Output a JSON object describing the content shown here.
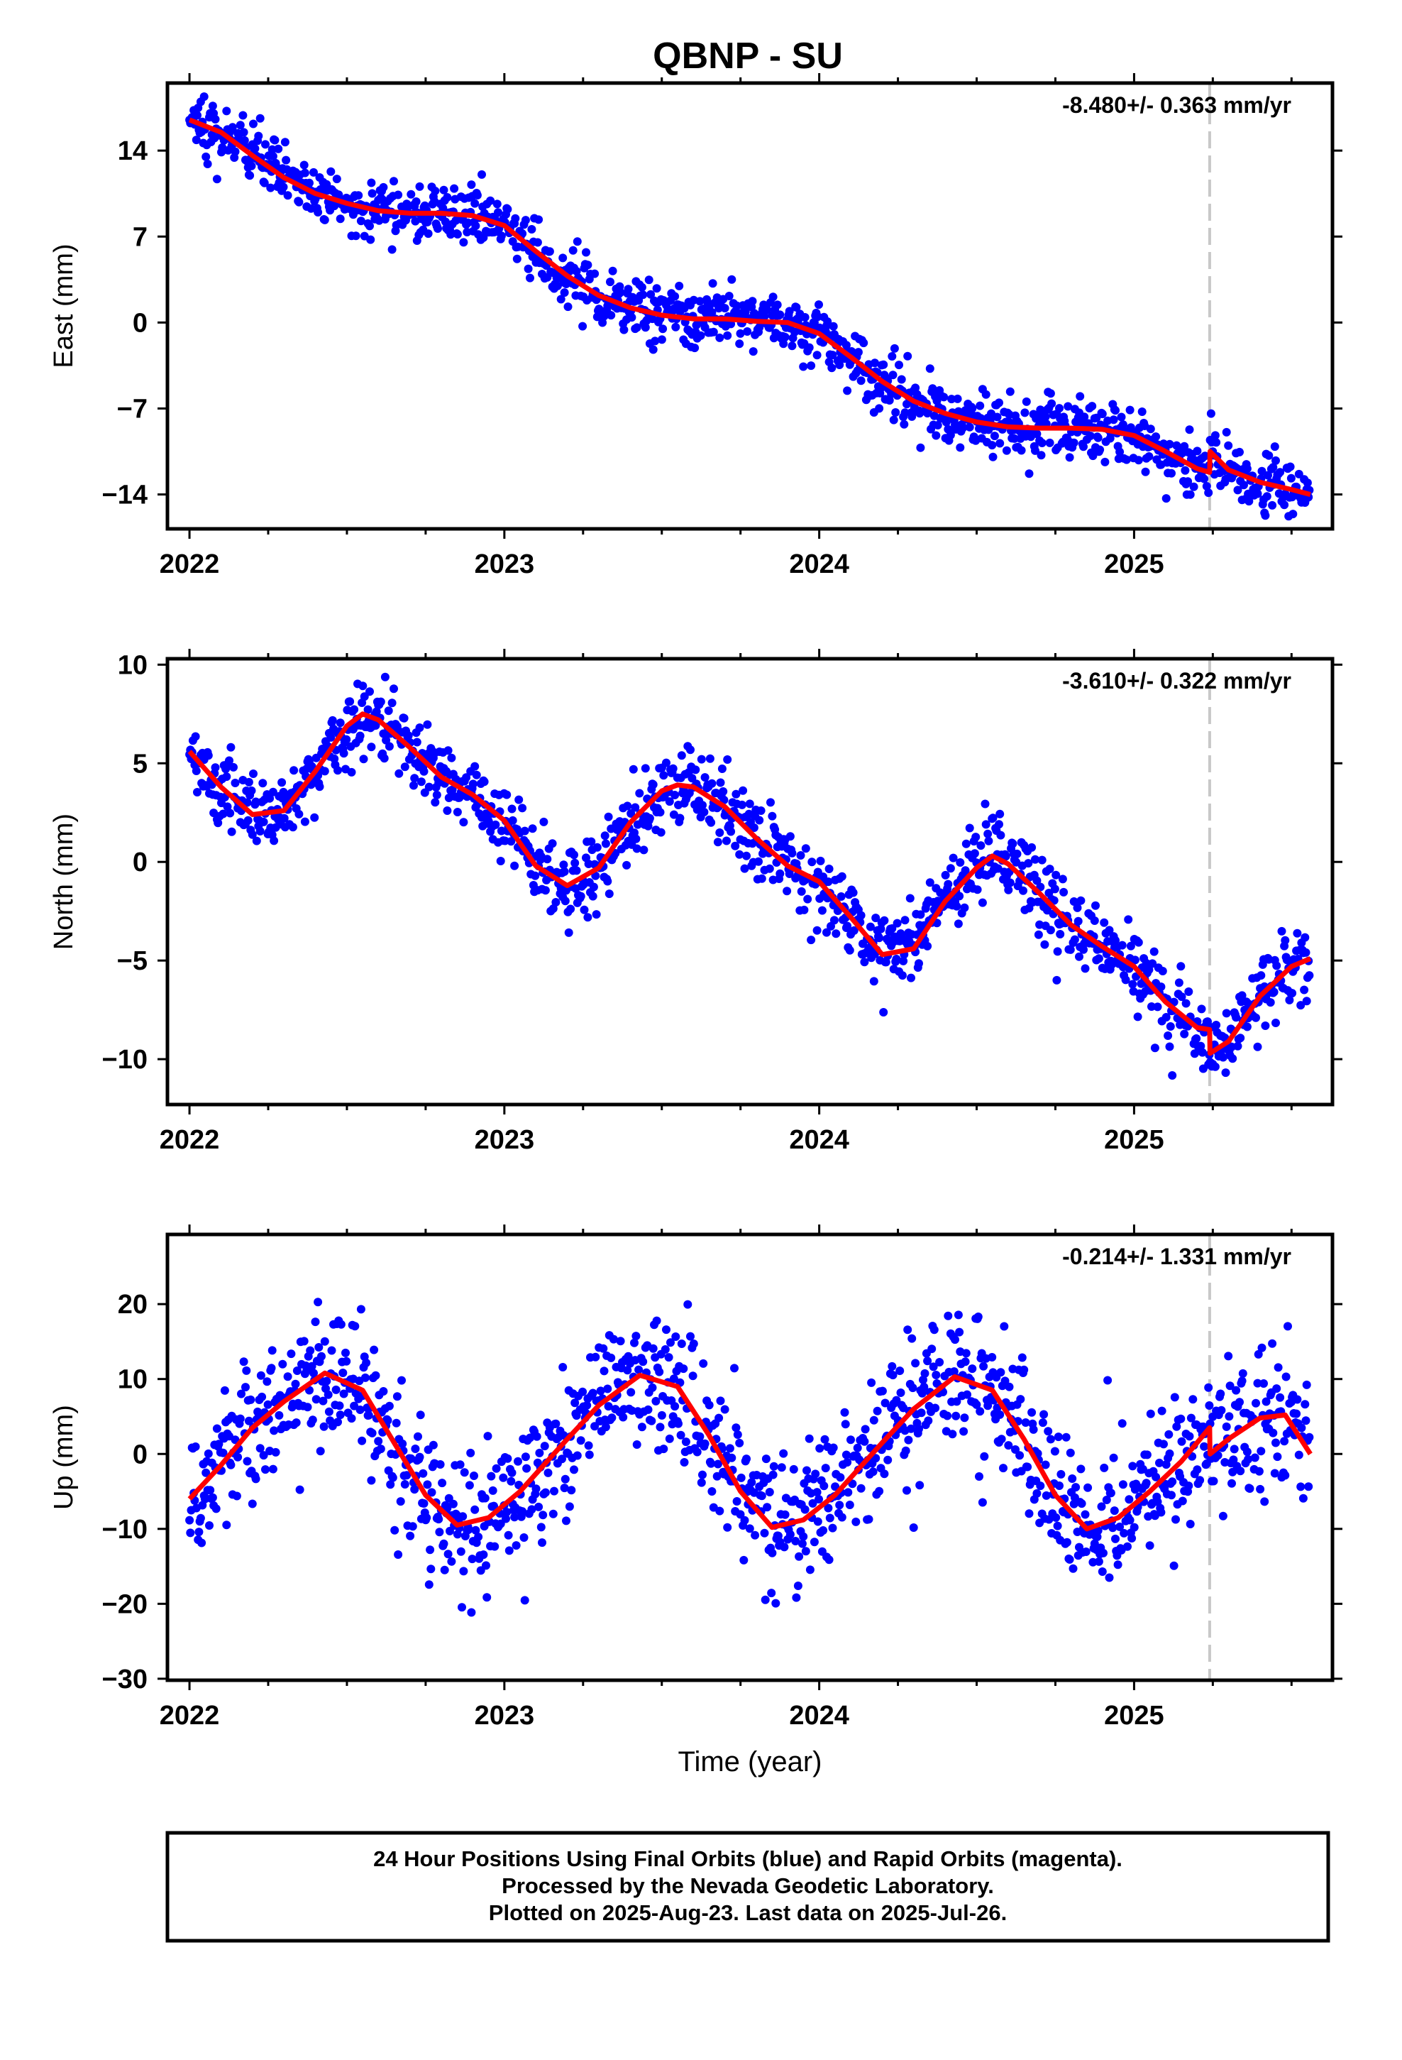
{
  "title": "QBNP - SU",
  "footer": {
    "lines": [
      "24 Hour Positions Using Final Orbits (blue) and Rapid Orbits (magenta).",
      "Processed by the Nevada Geodetic Laboratory.",
      "Plotted on 2025-Aug-23. Last data on 2025-Jul-26."
    ]
  },
  "colors": {
    "data_points": "#0000ff",
    "model_fit": "#ff0000",
    "event_line": "#c8c8c8",
    "frame": "#000000"
  },
  "chart_data": [
    {
      "type": "scatter",
      "component": "east",
      "ylabel": "East (mm)",
      "xlabel": "",
      "rate_label": "-8.480+/- 0.363 mm/yr",
      "xlim": [
        2021.93,
        2025.63
      ],
      "ylim": [
        -16.8,
        19.5
      ],
      "yticks": [
        14,
        7,
        0,
        -7,
        -14
      ],
      "xticks": [
        2022,
        2023,
        2024,
        2025
      ],
      "event_x": 2025.24,
      "model": {
        "x": [
          2022.0,
          2022.1,
          2022.2,
          2022.3,
          2022.4,
          2022.5,
          2022.6,
          2022.7,
          2022.8,
          2022.9,
          2023.0,
          2023.1,
          2023.2,
          2023.3,
          2023.4,
          2023.5,
          2023.6,
          2023.7,
          2023.8,
          2023.9,
          2024.0,
          2024.1,
          2024.2,
          2024.3,
          2024.4,
          2024.5,
          2024.6,
          2024.7,
          2024.8,
          2024.9,
          2025.0,
          2025.1,
          2025.2,
          2025.24,
          2025.241,
          2025.3,
          2025.4,
          2025.5,
          2025.56
        ],
        "y": [
          16.5,
          15.5,
          13.6,
          11.8,
          10.5,
          9.7,
          9.1,
          8.9,
          8.9,
          8.7,
          7.9,
          5.8,
          3.8,
          2.2,
          1.2,
          0.6,
          0.3,
          0.3,
          0.1,
          0.0,
          -0.9,
          -2.8,
          -4.8,
          -6.4,
          -7.4,
          -8.1,
          -8.5,
          -8.6,
          -8.6,
          -8.7,
          -9.2,
          -10.5,
          -11.9,
          -12.2,
          -10.5,
          -12.0,
          -13.0,
          -13.6,
          -14.0
        ]
      },
      "trend": {
        "start_y": 16.8,
        "end_y": -14.8,
        "amp": 1.2,
        "amp2": 0.5,
        "noise": 1.2
      },
      "observations": "~1200 daily positions, 2022.0–2025.56"
    },
    {
      "type": "scatter",
      "component": "north",
      "ylabel": "North (mm)",
      "xlabel": "",
      "rate_label": "-3.610+/- 0.322 mm/yr",
      "xlim": [
        2021.93,
        2025.63
      ],
      "ylim": [
        -12.3,
        10.3
      ],
      "yticks": [
        10,
        5,
        0,
        -5,
        -10
      ],
      "xticks": [
        2022,
        2023,
        2024,
        2025
      ],
      "event_x": 2025.24,
      "model": {
        "x": [
          2022.0,
          2022.1,
          2022.2,
          2022.3,
          2022.4,
          2022.5,
          2022.55,
          2022.6,
          2022.7,
          2022.8,
          2022.9,
          2023.0,
          2023.1,
          2023.2,
          2023.3,
          2023.4,
          2023.5,
          2023.55,
          2023.6,
          2023.7,
          2023.8,
          2023.9,
          2024.0,
          2024.1,
          2024.2,
          2024.3,
          2024.4,
          2024.5,
          2024.55,
          2024.6,
          2024.7,
          2024.8,
          2024.9,
          2025.0,
          2025.1,
          2025.2,
          2025.24,
          2025.241,
          2025.3,
          2025.4,
          2025.5,
          2025.56
        ],
        "y": [
          5.6,
          3.8,
          2.4,
          2.6,
          4.6,
          6.9,
          7.5,
          7.2,
          5.8,
          4.3,
          3.4,
          2.1,
          -0.2,
          -1.2,
          -0.3,
          2.0,
          3.6,
          3.9,
          3.8,
          2.8,
          1.2,
          -0.2,
          -1.0,
          -2.8,
          -4.7,
          -4.4,
          -2.0,
          -0.3,
          0.3,
          -0.1,
          -1.6,
          -3.2,
          -4.3,
          -5.3,
          -7.1,
          -8.4,
          -8.5,
          -9.7,
          -9.1,
          -6.8,
          -5.3,
          -4.9
        ]
      },
      "trend": {
        "start_y": 4.0,
        "end_y": -7.0,
        "amp": 2.6,
        "amp2": 0.0,
        "noise": 1.0
      },
      "observations": "~1200 daily positions, 2022.0–2025.56"
    },
    {
      "type": "scatter",
      "component": "up",
      "ylabel": "Up (mm)",
      "xlabel": "Time (year)",
      "rate_label": "-0.214+/- 1.331 mm/yr",
      "xlim": [
        2021.93,
        2025.63
      ],
      "ylim": [
        -30.2,
        29.3
      ],
      "yticks": [
        20,
        10,
        0,
        -10,
        -20,
        -30
      ],
      "xticks": [
        2022,
        2023,
        2024,
        2025
      ],
      "event_x": 2025.24,
      "model": {
        "x": [
          2022.0,
          2022.1,
          2022.2,
          2022.3,
          2022.43,
          2022.55,
          2022.65,
          2022.75,
          2022.85,
          2022.95,
          2023.05,
          2023.2,
          2023.3,
          2023.43,
          2023.55,
          2023.65,
          2023.75,
          2023.85,
          2023.95,
          2024.05,
          2024.2,
          2024.3,
          2024.43,
          2024.55,
          2024.65,
          2024.75,
          2024.85,
          2024.95,
          2025.05,
          2025.15,
          2025.24,
          2025.241,
          2025.3,
          2025.4,
          2025.48,
          2025.56
        ],
        "y": [
          -6.0,
          -1.5,
          3.5,
          7.0,
          10.8,
          8.5,
          1.5,
          -5.5,
          -9.5,
          -8.5,
          -5.0,
          2.0,
          6.5,
          10.5,
          9.0,
          2.5,
          -5.0,
          -9.8,
          -8.8,
          -5.5,
          1.5,
          6.0,
          10.3,
          8.5,
          2.0,
          -5.5,
          -10.0,
          -8.5,
          -5.0,
          -1.0,
          3.5,
          0.0,
          2.0,
          4.8,
          5.2,
          0.0
        ]
      },
      "trend": {
        "start_y": 0.0,
        "end_y": 0.0,
        "amp": 10.2,
        "amp2": 0.0,
        "noise": 4.6
      },
      "observations": "~1200 daily positions, 2022.0–2025.56"
    }
  ]
}
